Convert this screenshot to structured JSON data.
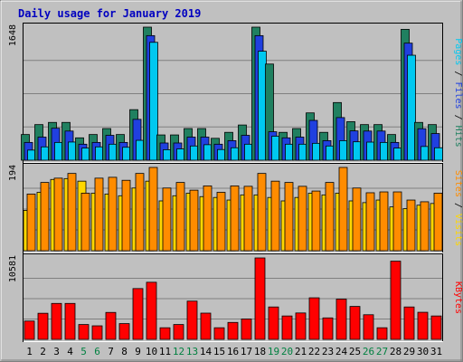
{
  "chart_data": {
    "type": "bar",
    "title": "Daily usage for January 2019",
    "categories": [
      "1",
      "2",
      "3",
      "4",
      "5",
      "6",
      "7",
      "8",
      "9",
      "10",
      "11",
      "12",
      "13",
      "14",
      "15",
      "16",
      "17",
      "18",
      "19",
      "20",
      "21",
      "22",
      "23",
      "24",
      "25",
      "26",
      "27",
      "28",
      "29",
      "30",
      "31"
    ],
    "weekend_days": [
      "5",
      "6",
      "12",
      "13",
      "19",
      "20",
      "26",
      "27"
    ],
    "panels": [
      {
        "id": "requests",
        "ymax_label": "1648",
        "ylim": [
          0,
          1648
        ],
        "axis_label_parts": [
          {
            "text": "Pages",
            "color": "#00c8f0"
          },
          {
            "text": " / ",
            "color": "#000000"
          },
          {
            "text": "Files",
            "color": "#2040e0"
          },
          {
            "text": " / ",
            "color": "#000000"
          },
          {
            "text": "Hits",
            "color": "#208060"
          }
        ],
        "series": [
          {
            "name": "Hits",
            "color": "#208060",
            "values": [
              318,
              441,
              468,
              468,
              277,
              318,
              392,
              318,
              626,
              1648,
              313,
              313,
              392,
              392,
              271,
              345,
              436,
              1648,
              1191,
              345,
              392,
              586,
              345,
              714,
              477,
              441,
              441,
              318,
              1621,
              468,
              441
            ]
          },
          {
            "name": "Files",
            "color": "#2040e0",
            "values": [
              220,
              286,
              396,
              361,
              198,
              220,
              308,
              220,
              506,
              1543,
              213,
              213,
              286,
              286,
              198,
              242,
              308,
              1543,
              352,
              277,
              286,
              493,
              242,
              528,
              363,
              361,
              361,
              220,
              1450,
              390,
              330
            ]
          },
          {
            "name": "Pages",
            "color": "#00c8f0",
            "values": [
              125,
              165,
              220,
              225,
              150,
              165,
              198,
              160,
              246,
              1460,
              130,
              140,
              176,
              192,
              132,
              154,
              198,
              1350,
              297,
              198,
              198,
              209,
              176,
              242,
              228,
              224,
              220,
              150,
              1300,
              170,
              154
            ]
          }
        ]
      },
      {
        "id": "visits",
        "ymax_label": "194",
        "ylim": [
          0,
          194
        ],
        "axis_label_parts": [
          {
            "text": "Sites",
            "color": "#ff8c00"
          },
          {
            "text": " / ",
            "color": "#000000"
          },
          {
            "text": "Visits",
            "color": "#ffd700"
          }
        ],
        "series": [
          {
            "name": "Visits",
            "color": "#ffd700",
            "values": [
              94,
              136,
              166,
              168,
              162,
              134,
              132,
              128,
              146,
              162,
              116,
              128,
              134,
              126,
              124,
              118,
              130,
              130,
              124,
              116,
              124,
              134,
              130,
              134,
              116,
              112,
              118,
              102,
              98,
              106,
              110
            ]
          },
          {
            "name": "Sites",
            "color": "#ff8c00",
            "values": [
              132,
              159,
              169,
              180,
              134,
              169,
              171,
              164,
              180,
              194,
              146,
              159,
              141,
              151,
              136,
              151,
              150,
              180,
              162,
              159,
              150,
              139,
              159,
              194,
              146,
              135,
              137,
              137,
              118,
              114,
              134
            ]
          }
        ]
      },
      {
        "id": "kbytes",
        "ymax_label": "10581",
        "ylim": [
          0,
          10581
        ],
        "axis_label_parts": [
          {
            "text": "KBytes",
            "color": "#ff0000"
          }
        ],
        "series": [
          {
            "name": "KBytes",
            "color": "#ff0000",
            "values": [
              2380,
              3390,
              4670,
              4670,
              1930,
              1760,
              3500,
              2050,
              6600,
              7420,
              1510,
              1930,
              4970,
              3410,
              1510,
              2200,
              2650,
              10581,
              4210,
              3040,
              3430,
              5400,
              2790,
              5230,
              4280,
              3200,
              1510,
              10161,
              4210,
              3520,
              3040
            ]
          }
        ]
      }
    ]
  }
}
